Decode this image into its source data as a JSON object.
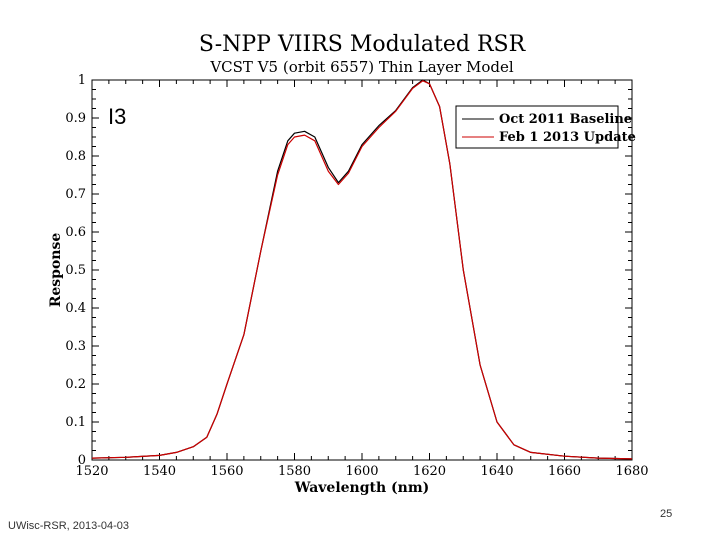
{
  "slide": {
    "footer_left": "UWisc-RSR, 2013-04-03",
    "page_number": "25"
  },
  "chart_data": {
    "type": "line",
    "title": "S-NPP VIIRS Modulated RSR",
    "subtitle": "VCST V5 (orbit 6557) Thin Layer Model",
    "band_label": "I3",
    "xlabel": "Wavelength (nm)",
    "ylabel": "Response",
    "xlim": [
      1520,
      1680
    ],
    "ylim": [
      0,
      1
    ],
    "xticks": [
      1520,
      1540,
      1560,
      1580,
      1600,
      1620,
      1640,
      1660,
      1680
    ],
    "yticks": [
      0,
      0.1,
      0.2,
      0.3,
      0.4,
      0.5,
      0.6,
      0.7,
      0.8,
      0.9,
      1
    ],
    "legend_position": "top-right",
    "series": [
      {
        "name": "Oct 2011 Baseline",
        "color": "#000000",
        "x": [
          1520,
          1530,
          1540,
          1545,
          1550,
          1554,
          1557,
          1560,
          1565,
          1570,
          1575,
          1578,
          1580,
          1583,
          1586,
          1590,
          1593,
          1596,
          1600,
          1605,
          1610,
          1615,
          1618,
          1620,
          1623,
          1626,
          1630,
          1635,
          1640,
          1645,
          1650,
          1660,
          1670,
          1680
        ],
        "y": [
          0.005,
          0.007,
          0.012,
          0.02,
          0.035,
          0.06,
          0.12,
          0.2,
          0.33,
          0.55,
          0.76,
          0.84,
          0.86,
          0.865,
          0.85,
          0.77,
          0.73,
          0.76,
          0.83,
          0.88,
          0.92,
          0.98,
          1.0,
          0.99,
          0.93,
          0.78,
          0.5,
          0.25,
          0.1,
          0.04,
          0.02,
          0.01,
          0.005,
          0.003
        ]
      },
      {
        "name": "Feb 1 2013 Update",
        "color": "#cc0000",
        "x": [
          1520,
          1530,
          1540,
          1545,
          1550,
          1554,
          1557,
          1560,
          1565,
          1570,
          1575,
          1578,
          1580,
          1583,
          1586,
          1590,
          1593,
          1596,
          1600,
          1605,
          1610,
          1615,
          1618,
          1620,
          1623,
          1626,
          1630,
          1635,
          1640,
          1645,
          1650,
          1660,
          1670,
          1680
        ],
        "y": [
          0.005,
          0.007,
          0.012,
          0.02,
          0.035,
          0.06,
          0.12,
          0.2,
          0.33,
          0.55,
          0.75,
          0.83,
          0.85,
          0.855,
          0.84,
          0.76,
          0.725,
          0.755,
          0.825,
          0.875,
          0.918,
          0.978,
          0.998,
          0.99,
          0.93,
          0.78,
          0.5,
          0.25,
          0.1,
          0.04,
          0.02,
          0.01,
          0.005,
          0.003
        ]
      }
    ]
  }
}
